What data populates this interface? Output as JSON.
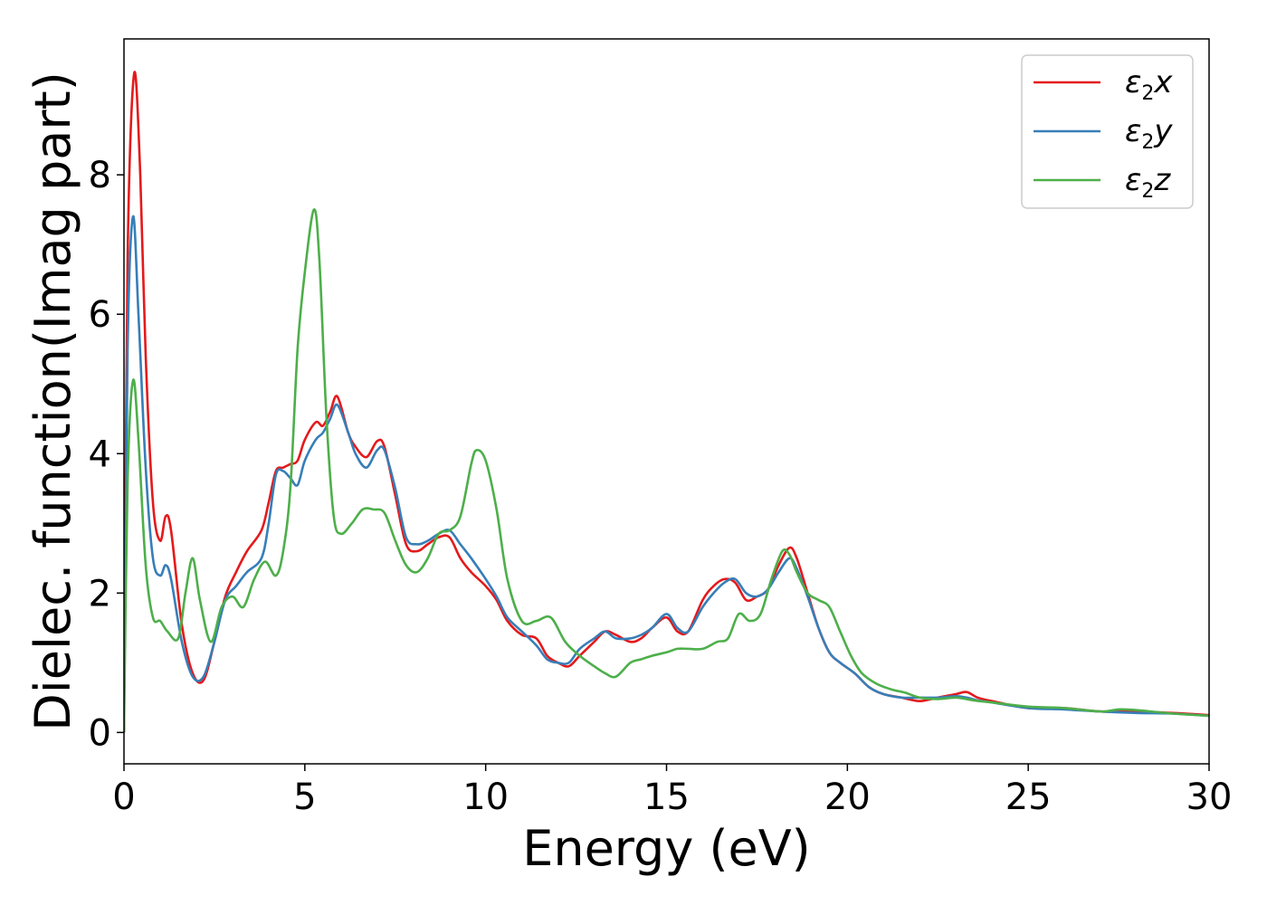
{
  "chart_data": {
    "type": "line",
    "xlabel": "Energy (eV)",
    "ylabel": "Dielec. function(Imag part)",
    "xlim": [
      0,
      30
    ],
    "ylim": [
      -0.45,
      9.95
    ],
    "xticks": [
      0,
      5,
      10,
      15,
      20,
      25,
      30
    ],
    "yticks": [
      0,
      2,
      4,
      6,
      8
    ],
    "grid": false,
    "legend_position": "top-right",
    "series": [
      {
        "name": "ε2x",
        "legend_base": "ε",
        "legend_sub": "2",
        "legend_tail": "x",
        "color": "#e41a1c",
        "x": [
          0,
          0.1,
          0.28,
          0.45,
          0.6,
          0.8,
          1.0,
          1.15,
          1.3,
          1.6,
          1.9,
          2.2,
          2.5,
          2.8,
          3.1,
          3.4,
          3.8,
          4.0,
          4.2,
          4.4,
          4.6,
          4.8,
          5.0,
          5.3,
          5.5,
          5.7,
          5.9,
          6.2,
          6.4,
          6.7,
          7.0,
          7.2,
          7.5,
          7.8,
          8.1,
          8.4,
          8.7,
          9.0,
          9.3,
          9.6,
          10.0,
          10.3,
          10.6,
          11.0,
          11.4,
          11.7,
          12.0,
          12.3,
          12.6,
          13.0,
          13.3,
          13.6,
          14.0,
          14.3,
          14.6,
          15.0,
          15.3,
          15.6,
          16.0,
          16.3,
          16.6,
          16.9,
          17.2,
          17.5,
          17.8,
          18.1,
          18.4,
          18.6,
          18.9,
          19.2,
          19.5,
          19.8,
          20.2,
          20.6,
          21.0,
          21.5,
          22.0,
          22.5,
          23.0,
          23.3,
          23.6,
          24.0,
          25.0,
          26.0,
          27.0,
          28.0,
          29.0,
          30.0
        ],
        "values": [
          0,
          6.8,
          9.45,
          8.0,
          5.4,
          3.3,
          2.75,
          3.1,
          2.9,
          1.55,
          0.85,
          0.75,
          1.3,
          1.95,
          2.3,
          2.6,
          2.9,
          3.3,
          3.75,
          3.8,
          3.85,
          3.9,
          4.2,
          4.45,
          4.4,
          4.6,
          4.82,
          4.3,
          4.1,
          3.95,
          4.18,
          4.1,
          3.4,
          2.7,
          2.6,
          2.7,
          2.8,
          2.8,
          2.5,
          2.3,
          2.1,
          1.9,
          1.6,
          1.4,
          1.35,
          1.1,
          1.0,
          0.95,
          1.1,
          1.3,
          1.45,
          1.4,
          1.3,
          1.35,
          1.5,
          1.65,
          1.45,
          1.45,
          1.9,
          2.1,
          2.2,
          2.15,
          1.9,
          1.95,
          2.05,
          2.4,
          2.65,
          2.5,
          2.0,
          1.5,
          1.15,
          1.0,
          0.85,
          0.65,
          0.55,
          0.5,
          0.45,
          0.5,
          0.55,
          0.58,
          0.5,
          0.45,
          0.35,
          0.35,
          0.3,
          0.3,
          0.28,
          0.25
        ]
      },
      {
        "name": "ε2y",
        "legend_base": "ε",
        "legend_sub": "2",
        "legend_tail": "y",
        "color": "#377eb8",
        "x": [
          0,
          0.1,
          0.25,
          0.4,
          0.6,
          0.8,
          1.0,
          1.15,
          1.3,
          1.6,
          1.9,
          2.2,
          2.5,
          2.8,
          3.1,
          3.4,
          3.8,
          4.0,
          4.2,
          4.4,
          4.6,
          4.8,
          5.0,
          5.3,
          5.5,
          5.7,
          5.9,
          6.2,
          6.4,
          6.7,
          7.0,
          7.2,
          7.5,
          7.8,
          8.1,
          8.4,
          8.7,
          9.0,
          9.3,
          9.6,
          10.0,
          10.3,
          10.6,
          11.0,
          11.4,
          11.7,
          12.0,
          12.3,
          12.6,
          13.0,
          13.3,
          13.6,
          14.0,
          14.3,
          14.6,
          15.0,
          15.3,
          15.6,
          16.0,
          16.3,
          16.6,
          16.9,
          17.2,
          17.5,
          17.8,
          18.1,
          18.4,
          18.6,
          18.9,
          19.2,
          19.5,
          19.8,
          20.2,
          20.6,
          21.0,
          21.5,
          22.0,
          22.5,
          23.0,
          23.3,
          23.6,
          24.0,
          25.0,
          26.0,
          27.0,
          28.0,
          29.0,
          30.0
        ],
        "values": [
          0,
          5.5,
          7.4,
          6.0,
          3.8,
          2.5,
          2.25,
          2.4,
          2.2,
          1.3,
          0.8,
          0.8,
          1.3,
          1.9,
          2.1,
          2.3,
          2.5,
          3.0,
          3.7,
          3.75,
          3.65,
          3.55,
          3.9,
          4.2,
          4.3,
          4.5,
          4.7,
          4.3,
          4.0,
          3.8,
          4.05,
          4.05,
          3.5,
          2.8,
          2.7,
          2.75,
          2.85,
          2.9,
          2.7,
          2.5,
          2.2,
          1.95,
          1.65,
          1.45,
          1.25,
          1.05,
          1.0,
          1.0,
          1.2,
          1.35,
          1.45,
          1.35,
          1.35,
          1.4,
          1.5,
          1.7,
          1.5,
          1.45,
          1.8,
          2.0,
          2.15,
          2.2,
          2.0,
          1.95,
          2.05,
          2.3,
          2.5,
          2.35,
          1.95,
          1.5,
          1.15,
          1.0,
          0.85,
          0.65,
          0.55,
          0.5,
          0.5,
          0.5,
          0.52,
          0.5,
          0.46,
          0.43,
          0.35,
          0.33,
          0.3,
          0.28,
          0.27,
          0.24
        ]
      },
      {
        "name": "ε2z",
        "legend_base": "ε",
        "legend_sub": "2",
        "legend_tail": "z",
        "color": "#4daf4a",
        "x": [
          0,
          0.1,
          0.25,
          0.4,
          0.6,
          0.8,
          1.0,
          1.2,
          1.5,
          1.7,
          1.9,
          2.1,
          2.4,
          2.7,
          3.0,
          3.3,
          3.6,
          3.9,
          4.2,
          4.4,
          4.6,
          4.8,
          5.0,
          5.25,
          5.4,
          5.6,
          5.8,
          6.0,
          6.3,
          6.6,
          6.9,
          7.2,
          7.5,
          7.8,
          8.1,
          8.4,
          8.7,
          9.0,
          9.3,
          9.6,
          9.75,
          10.0,
          10.3,
          10.6,
          11.0,
          11.4,
          11.8,
          12.2,
          12.6,
          13.0,
          13.3,
          13.6,
          14.0,
          14.3,
          14.6,
          15.0,
          15.3,
          15.6,
          16.0,
          16.4,
          16.7,
          17.0,
          17.3,
          17.6,
          17.9,
          18.2,
          18.4,
          18.6,
          18.9,
          19.2,
          19.5,
          19.8,
          20.1,
          20.4,
          20.8,
          21.2,
          21.6,
          22.0,
          22.5,
          23.0,
          23.5,
          24.0,
          25.0,
          26.0,
          27.0,
          27.5,
          28.0,
          29.0,
          30.0
        ],
        "values": [
          0,
          3.6,
          5.05,
          4.2,
          2.4,
          1.65,
          1.6,
          1.45,
          1.35,
          2.0,
          2.5,
          1.9,
          1.3,
          1.8,
          1.95,
          1.8,
          2.2,
          2.45,
          2.25,
          2.6,
          3.5,
          5.5,
          6.6,
          7.5,
          6.8,
          4.5,
          3.1,
          2.85,
          3.0,
          3.2,
          3.2,
          3.15,
          2.75,
          2.4,
          2.3,
          2.5,
          2.85,
          2.9,
          3.1,
          3.85,
          4.05,
          3.9,
          3.2,
          2.2,
          1.6,
          1.6,
          1.65,
          1.3,
          1.1,
          0.95,
          0.85,
          0.8,
          1.0,
          1.05,
          1.1,
          1.15,
          1.2,
          1.2,
          1.2,
          1.3,
          1.35,
          1.7,
          1.6,
          1.7,
          2.2,
          2.6,
          2.55,
          2.3,
          2.0,
          1.9,
          1.8,
          1.45,
          1.1,
          0.85,
          0.7,
          0.62,
          0.57,
          0.5,
          0.48,
          0.5,
          0.46,
          0.43,
          0.37,
          0.35,
          0.3,
          0.33,
          0.32,
          0.27,
          0.24
        ]
      }
    ]
  }
}
